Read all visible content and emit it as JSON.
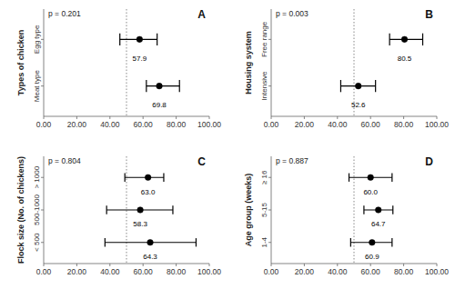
{
  "chart_data": [
    {
      "type": "dot",
      "orientation": "horizontal",
      "title": "A",
      "annotations": [
        "p = 0.201"
      ],
      "ylabel": "Types of chicken",
      "categories": [
        "Egg type",
        "Meat type"
      ],
      "values": [
        57.9,
        69.8
      ],
      "value_labels": [
        "57.9",
        "69.8"
      ],
      "ci_low": [
        46.0,
        62.0
      ],
      "ci_high": [
        68.5,
        82.0
      ],
      "xlim": [
        0,
        100
      ],
      "xticks": [
        {
          "value": 0,
          "label": "0.00"
        },
        {
          "value": 20,
          "label": "20.00"
        },
        {
          "value": 40,
          "label": "40.00"
        },
        {
          "value": 60,
          "label": "60.00"
        },
        {
          "value": 80,
          "label": "80.00"
        },
        {
          "value": 100,
          "label": "100.00"
        }
      ],
      "vline": 50,
      "data_labels": true,
      "color": "black",
      "grid": false
    },
    {
      "type": "dot",
      "orientation": "horizontal",
      "title": "B",
      "annotations": [
        "p = 0.003"
      ],
      "ylabel": "Housing system",
      "categories": [
        "Free range",
        "Intensive"
      ],
      "values": [
        80.5,
        52.6
      ],
      "value_labels": [
        "80.5",
        "52.6"
      ],
      "ci_low": [
        71.5,
        42.0
      ],
      "ci_high": [
        91.5,
        63.0
      ],
      "xlim": [
        0,
        100
      ],
      "xticks": [
        {
          "value": 0,
          "label": "0.00"
        },
        {
          "value": 20,
          "label": "20.00"
        },
        {
          "value": 40,
          "label": "40.00"
        },
        {
          "value": 60,
          "label": "60.00"
        },
        {
          "value": 80,
          "label": "80.00"
        },
        {
          "value": 100,
          "label": "100.00"
        }
      ],
      "vline": 50,
      "data_labels": true,
      "color": "black",
      "grid": false
    },
    {
      "type": "dot",
      "orientation": "horizontal",
      "title": "C",
      "annotations": [
        "p = 0.804"
      ],
      "ylabel": "Flock size (No. of chickens)",
      "categories": [
        "> 1000",
        "500-1000",
        "< 500"
      ],
      "values": [
        63.0,
        58.3,
        64.3
      ],
      "value_labels": [
        "63.0",
        "58.3",
        "64.3"
      ],
      "ci_low": [
        49.0,
        38.0,
        37.0
      ],
      "ci_high": [
        72.5,
        78.0,
        92.0
      ],
      "xlim": [
        0,
        100
      ],
      "xticks": [
        {
          "value": 0,
          "label": "0.00"
        },
        {
          "value": 20,
          "label": "20.00"
        },
        {
          "value": 40,
          "label": "40.00"
        },
        {
          "value": 60,
          "label": "60.00"
        },
        {
          "value": 80,
          "label": "80.00"
        },
        {
          "value": 100,
          "label": "100.00"
        }
      ],
      "vline": 50,
      "data_labels": true,
      "color": "black",
      "grid": false
    },
    {
      "type": "dot",
      "orientation": "horizontal",
      "title": "D",
      "annotations": [
        "p = 0.887"
      ],
      "ylabel": "Age group (weeks)",
      "categories": [
        "≥ 16",
        "5-15",
        "1-4"
      ],
      "values": [
        60.0,
        64.7,
        60.9
      ],
      "value_labels": [
        "60.0",
        "64.7",
        "60.9"
      ],
      "ci_low": [
        47.0,
        56.0,
        48.0
      ],
      "ci_high": [
        73.0,
        73.5,
        73.0
      ],
      "xlim": [
        0,
        100
      ],
      "xticks": [
        {
          "value": 0,
          "label": "0.00"
        },
        {
          "value": 20,
          "label": "20.00"
        },
        {
          "value": 40,
          "label": "40.00"
        },
        {
          "value": 60,
          "label": "60.00"
        },
        {
          "value": 80,
          "label": "80.00"
        },
        {
          "value": 100,
          "label": "100.00"
        }
      ],
      "vline": 50,
      "data_labels": true,
      "color": "black",
      "grid": false
    }
  ]
}
